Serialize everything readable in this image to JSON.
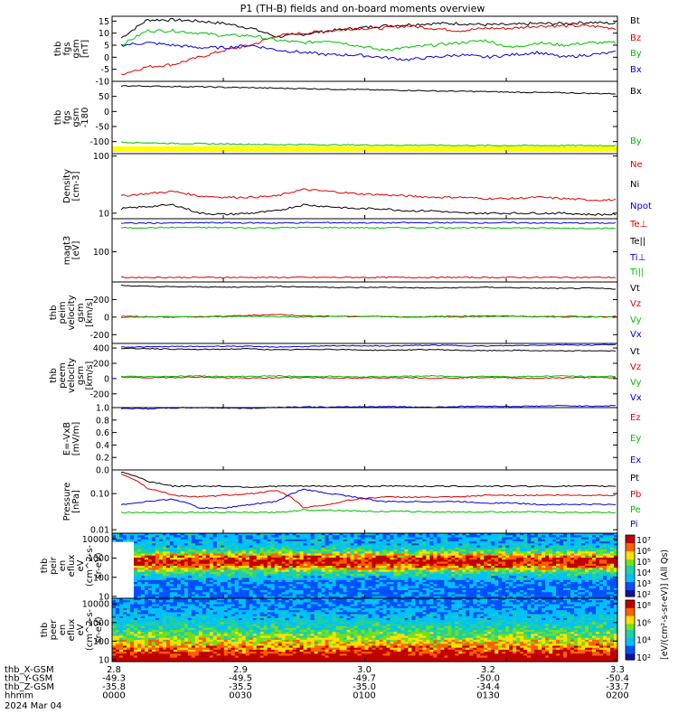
{
  "title": "P1 (TH-B) fields and on-board moments overview",
  "colors": {
    "black": "#000000",
    "red": "#e00000",
    "green": "#00c000",
    "blue": "#0000e0",
    "yellow": "#ffff00"
  },
  "chart_data": [
    {
      "id": "fgs",
      "type": "line",
      "ylabel": [
        "thb",
        "fgs",
        "gsm",
        "[nT]"
      ],
      "yticks": [
        "15",
        "10",
        "5",
        "0",
        "-5",
        "-10"
      ],
      "ylim": [
        -10,
        17
      ],
      "series": [
        {
          "name": "Bt",
          "color": "#000000",
          "values": [
            8,
            15.5,
            15.5,
            15,
            14,
            12,
            8.5,
            9.5,
            11,
            12,
            13,
            13.5,
            14,
            14,
            13.5,
            13.5,
            14,
            14,
            14.5,
            14
          ]
        },
        {
          "name": "Bz",
          "color": "#e00000",
          "values": [
            -7,
            -4,
            -3,
            0,
            3,
            5,
            9,
            10,
            11,
            12,
            12,
            13,
            12,
            11,
            12,
            12,
            13,
            13,
            13,
            12
          ]
        },
        {
          "name": "By",
          "color": "#00c000",
          "values": [
            5,
            11,
            11,
            10,
            9,
            9,
            7,
            6,
            7,
            5,
            3,
            4,
            5,
            6,
            7,
            4,
            6,
            5,
            6,
            6
          ]
        },
        {
          "name": "Bx",
          "color": "#0000e0",
          "values": [
            5,
            6,
            5,
            4,
            4,
            5,
            3,
            2,
            1,
            1,
            0,
            -1,
            0,
            1,
            0,
            1,
            2,
            0,
            1,
            2
          ]
        }
      ]
    },
    {
      "id": "fgs_dsl",
      "type": "line",
      "ylabel": [
        "thb",
        "fgs",
        "gsm",
        "-180"
      ],
      "yticks": [
        "50",
        "0",
        "-50",
        "-100"
      ],
      "ylim": [
        -140,
        100
      ],
      "series": [
        {
          "name": "Bx",
          "color": "#000000",
          "values": [
            85,
            84,
            83,
            82,
            80,
            79,
            77,
            76,
            74,
            73,
            71,
            70,
            68,
            67,
            66,
            64,
            63,
            62,
            60,
            59
          ]
        },
        {
          "name": "By",
          "color": "#00c000",
          "values": [
            -102,
            -104,
            -106,
            -107,
            -108,
            -109,
            -110,
            -110,
            -111,
            -111,
            -112,
            -112,
            -112,
            -113,
            -113,
            -113,
            -113,
            -113,
            -113,
            -113
          ]
        }
      ]
    },
    {
      "id": "density",
      "type": "line",
      "ylabel": [
        "Density",
        "[cm-3]"
      ],
      "log": true,
      "yticks": [
        "100",
        "10"
      ],
      "ylim": [
        8,
        110
      ],
      "series": [
        {
          "name": "Ne",
          "color": "#e00000",
          "values": [
            20,
            22,
            24,
            20,
            19,
            19,
            20,
            26,
            24,
            22,
            21,
            20,
            19,
            19,
            18,
            18,
            19,
            18,
            17,
            17
          ]
        },
        {
          "name": "Ni",
          "color": "#000000",
          "values": [
            12,
            13,
            14,
            10,
            9.5,
            10,
            11,
            14,
            13,
            12,
            12,
            11,
            11,
            10,
            10,
            10,
            10,
            10,
            9.5,
            9.5
          ]
        },
        {
          "name": "Npot",
          "color": "#0000e0",
          "values": []
        }
      ]
    },
    {
      "id": "temp",
      "type": "line",
      "ylabel": [
        "magt3",
        "[eV]"
      ],
      "log": true,
      "yticks": [
        "100"
      ],
      "ylim": [
        15,
        800
      ],
      "series": [
        {
          "name": "Te⊥",
          "color": "#e00000",
          "values": [
            20,
            20,
            20,
            20,
            20,
            20,
            20,
            20,
            20,
            20,
            20,
            20,
            20,
            20,
            20,
            20,
            20,
            20,
            20,
            20
          ]
        },
        {
          "name": "Te||",
          "color": "#000000",
          "values": []
        },
        {
          "name": "Ti⊥",
          "color": "#0000e0",
          "values": [
            600,
            610,
            610,
            620,
            620,
            615,
            610,
            620,
            625,
            620,
            615,
            620,
            620,
            625,
            620,
            620,
            615,
            610,
            610,
            605
          ]
        },
        {
          "name": "Ti||",
          "color": "#00c000",
          "values": [
            450,
            455,
            460,
            460,
            455,
            450,
            455,
            460,
            460,
            455,
            450,
            455,
            460,
            455,
            450,
            450,
            445,
            440,
            440,
            435
          ]
        }
      ]
    },
    {
      "id": "peim_v",
      "type": "line",
      "ylabel": [
        "thb",
        "peim",
        "velocity",
        "gsm",
        "[km/s]"
      ],
      "yticks": [
        "200",
        "0",
        "-200"
      ],
      "ylim": [
        -300,
        400
      ],
      "series": [
        {
          "name": "Vt",
          "color": "#000000",
          "values": [
            360,
            350,
            345,
            345,
            340,
            345,
            350,
            345,
            340,
            335,
            340,
            335,
            330,
            335,
            340,
            335,
            330,
            325,
            330,
            320
          ]
        },
        {
          "name": "Vz",
          "color": "#e00000",
          "values": [
            10,
            5,
            0,
            5,
            10,
            20,
            30,
            15,
            10,
            5,
            10,
            0,
            5,
            10,
            15,
            10,
            5,
            10,
            0,
            10
          ]
        },
        {
          "name": "Vy",
          "color": "#00c000",
          "values": [
            -5,
            0,
            5,
            0,
            5,
            10,
            5,
            0,
            5,
            10,
            5,
            0,
            5,
            0,
            5,
            10,
            5,
            0,
            5,
            0
          ]
        },
        {
          "name": "Vx",
          "color": "#0000e0",
          "values": [
            -340,
            -340,
            -335,
            -335,
            -330,
            -335,
            -340,
            -335,
            -330,
            -325,
            -330,
            -325,
            -320,
            -325,
            -330,
            -325,
            -320,
            -315,
            -320,
            -310
          ]
        }
      ]
    },
    {
      "id": "peem_v",
      "type": "line",
      "ylabel": [
        "thb",
        "peem",
        "velocity",
        "gsm",
        "[km/s]"
      ],
      "yticks": [
        "400",
        "200",
        "0",
        "-200"
      ],
      "ylim": [
        -380,
        460
      ],
      "series": [
        {
          "name": "Vt",
          "color": "#000000",
          "values": [
            390,
            395,
            385,
            380,
            385,
            390,
            375,
            380,
            385,
            375,
            370,
            375,
            380,
            370,
            365,
            370,
            365,
            360,
            365,
            360
          ]
        },
        {
          "name": "Vz",
          "color": "#e00000",
          "values": [
            20,
            10,
            15,
            20,
            10,
            5,
            10,
            15,
            10,
            5,
            10,
            15,
            5,
            10,
            15,
            10,
            5,
            10,
            15,
            10
          ]
        },
        {
          "name": "Vy",
          "color": "#00c000",
          "values": [
            30,
            25,
            30,
            35,
            25,
            30,
            35,
            25,
            30,
            20,
            25,
            30,
            35,
            25,
            30,
            25,
            30,
            35,
            25,
            30
          ]
        },
        {
          "name": "Vx",
          "color": "#0000e0",
          "values": [
            -390,
            -395,
            -385,
            -380,
            -385,
            -390,
            -375,
            -370,
            -375,
            -370,
            -365,
            -370,
            -375,
            -365,
            -360,
            -365,
            -360,
            -355,
            -360,
            -355
          ]
        }
      ]
    },
    {
      "id": "efield",
      "type": "line",
      "ylabel": [
        "E=-VxB",
        "[mV/m]"
      ],
      "yticks": [
        "1.0",
        "0.8",
        "0.6",
        "0.4",
        "0.2",
        "0.0"
      ],
      "ylim": [
        0,
        1
      ],
      "series": [
        {
          "name": "Ez",
          "color": "#e00000",
          "values": []
        },
        {
          "name": "Ey",
          "color": "#00c000",
          "values": []
        },
        {
          "name": "Ex",
          "color": "#0000e0",
          "values": []
        }
      ]
    },
    {
      "id": "pressure",
      "type": "line",
      "ylabel": [
        "Pressure",
        "[nPa]"
      ],
      "log": true,
      "yticks": [
        "0.10",
        "0.01"
      ],
      "ylim": [
        0.008,
        0.45
      ],
      "series": [
        {
          "name": "Pt",
          "color": "#000000",
          "values": [
            0.4,
            0.22,
            0.16,
            0.16,
            0.16,
            0.15,
            0.16,
            0.16,
            0.16,
            0.16,
            0.16,
            0.16,
            0.16,
            0.16,
            0.16,
            0.16,
            0.16,
            0.16,
            0.16,
            0.16
          ]
        },
        {
          "name": "Pb",
          "color": "#e00000",
          "values": [
            0.35,
            0.14,
            0.09,
            0.08,
            0.09,
            0.1,
            0.12,
            0.04,
            0.05,
            0.07,
            0.08,
            0.08,
            0.08,
            0.08,
            0.09,
            0.09,
            0.09,
            0.09,
            0.09,
            0.09
          ]
        },
        {
          "name": "Pe",
          "color": "#00c000",
          "values": [
            0.03,
            0.03,
            0.03,
            0.03,
            0.03,
            0.03,
            0.03,
            0.035,
            0.035,
            0.033,
            0.032,
            0.032,
            0.031,
            0.031,
            0.031,
            0.031,
            0.031,
            0.03,
            0.03,
            0.03
          ]
        },
        {
          "name": "Pi",
          "color": "#0000e0",
          "values": [
            0.05,
            0.06,
            0.07,
            0.04,
            0.04,
            0.05,
            0.06,
            0.13,
            0.1,
            0.08,
            0.06,
            0.06,
            0.06,
            0.06,
            0.055,
            0.055,
            0.05,
            0.05,
            0.05,
            0.05
          ]
        }
      ]
    },
    {
      "id": "peir",
      "type": "heatmap",
      "ylabel": [
        "thb",
        "peir",
        "en",
        "eflux",
        "eV",
        "(cm^2-s-",
        "sr-eV)"
      ],
      "yticks": [
        "10000",
        "1000",
        "100",
        "10"
      ],
      "ylim": [
        8,
        20000
      ],
      "colorbar_ticks": [
        "10⁷",
        "10⁶",
        "10⁵",
        "10⁴",
        "10³",
        "10²"
      ],
      "colorbar_label": "eV/(cm²-s-sr-eV) (All Qs)"
    },
    {
      "id": "peer",
      "type": "heatmap",
      "ylabel": [
        "thb",
        "peer",
        "en",
        "eflux",
        "eV",
        "(cm^2-s-",
        "sr-eV)"
      ],
      "yticks": [
        "10000",
        "1000",
        "100",
        "10"
      ],
      "ylim": [
        8,
        20000
      ],
      "colorbar_ticks": [
        "10⁸",
        "10⁶",
        "10⁴",
        "10²"
      ],
      "colorbar_label": "[eV/(cm²-s-sr-eV)] (All Qs)"
    }
  ],
  "x_axis": {
    "tick_rows": [
      {
        "label": "thb_X-GSM",
        "values": [
          "2.8",
          "2.9",
          "3.0",
          "3.2",
          "3.3"
        ]
      },
      {
        "label": "thb_Y-GSM",
        "values": [
          "-49.3",
          "-49.5",
          "-49.7",
          "-50.0",
          "-50.4"
        ]
      },
      {
        "label": "thb_Z-GSM",
        "values": [
          "-35.8",
          "-35.5",
          "-35.0",
          "-34.4",
          "-33.7"
        ]
      },
      {
        "label": "hhmm",
        "values": [
          "0000",
          "0030",
          "0100",
          "0130",
          "0200"
        ]
      }
    ],
    "date": "2024 Mar 04"
  }
}
